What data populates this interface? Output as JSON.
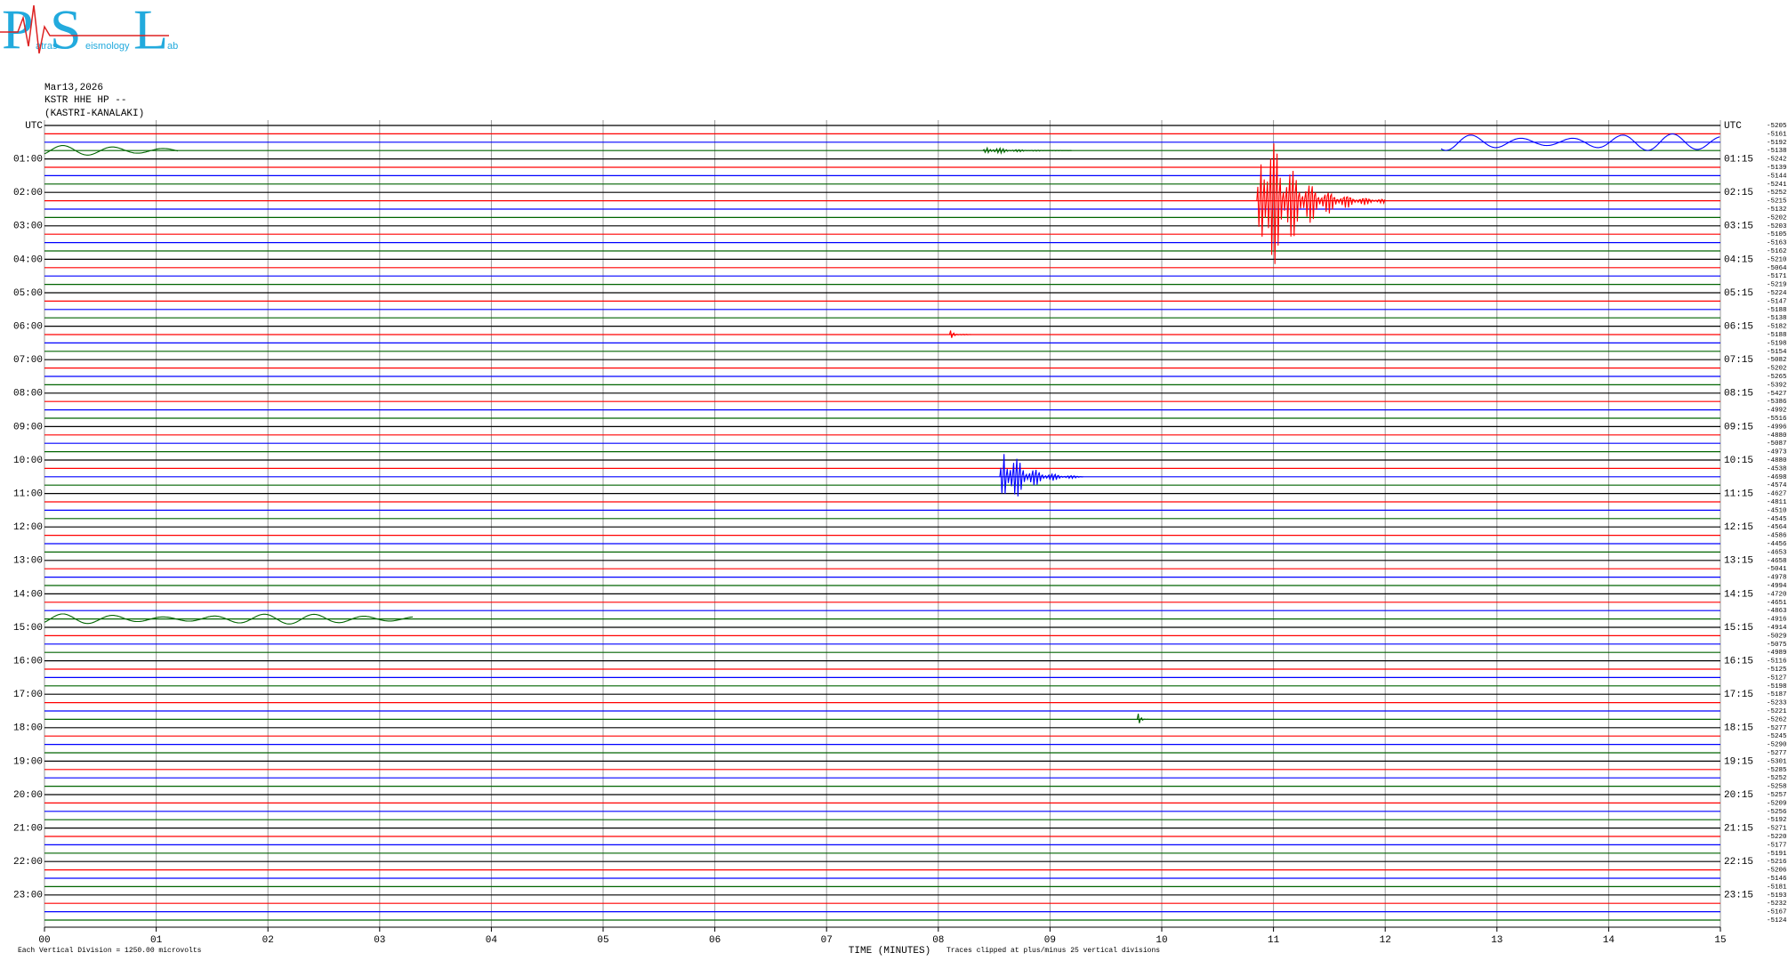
{
  "header": {
    "logo": {
      "letters": [
        "P",
        "S",
        "L"
      ],
      "words": [
        "atras",
        "eismology",
        "ab"
      ]
    },
    "date": "Mar13,2026",
    "station": "KSTR HHE HP --",
    "site": "(KASTRI-KANALAKI)"
  },
  "chart_data": {
    "type": "helicorder",
    "xlabel": "TIME (MINUTES)",
    "xlim": [
      0,
      15
    ],
    "xticks": [
      {
        "value": 0,
        "label": "00"
      },
      {
        "value": 1,
        "label": "01"
      },
      {
        "value": 2,
        "label": "02"
      },
      {
        "value": 3,
        "label": "03"
      },
      {
        "value": 4,
        "label": "04"
      },
      {
        "value": 5,
        "label": "05"
      },
      {
        "value": 6,
        "label": "06"
      },
      {
        "value": 7,
        "label": "07"
      },
      {
        "value": 8,
        "label": "08"
      },
      {
        "value": 9,
        "label": "09"
      },
      {
        "value": 10,
        "label": "10"
      },
      {
        "value": 11,
        "label": "11"
      },
      {
        "value": 12,
        "label": "12"
      },
      {
        "value": 13,
        "label": "13"
      },
      {
        "value": 14,
        "label": "14"
      },
      {
        "value": 15,
        "label": "15"
      }
    ],
    "grid": true,
    "left_labels": [
      "UTC",
      "01:00",
      "02:00",
      "03:00",
      "04:00",
      "05:00",
      "06:00",
      "07:00",
      "08:00",
      "09:00",
      "10:00",
      "11:00",
      "12:00",
      "13:00",
      "14:00",
      "15:00",
      "16:00",
      "17:00",
      "18:00",
      "19:00",
      "20:00",
      "21:00",
      "22:00",
      "23:00"
    ],
    "right_labels": [
      "UTC",
      "01:15",
      "02:15",
      "03:15",
      "04:15",
      "05:15",
      "06:15",
      "07:15",
      "08:15",
      "09:15",
      "10:15",
      "11:15",
      "12:15",
      "13:15",
      "14:15",
      "15:15",
      "16:15",
      "17:15",
      "18:15",
      "19:15",
      "20:15",
      "21:15",
      "22:15",
      "23:15"
    ],
    "offsets": [
      -5205,
      -5161,
      -5192,
      -5138,
      -5242,
      -5139,
      -5144,
      -5241,
      -5252,
      -5215,
      -5132,
      -5202,
      -5203,
      -5105,
      -5163,
      -5162,
      -5210,
      -5064,
      -5171,
      -5219,
      -5224,
      -5147,
      -5188,
      -5138,
      -5182,
      -5188,
      -5198,
      -5154,
      -5082,
      -5202,
      -5265,
      -5392,
      -5427,
      -5386,
      -4992,
      -5516,
      -4996,
      -4880,
      -5087,
      -4973,
      -4880,
      -4538,
      -4698,
      -4574,
      -4627,
      -4811,
      -4510,
      -4545,
      -4564,
      -4586,
      -4456,
      -4653,
      -4658,
      -5041,
      -4978,
      -4994,
      -4720,
      -4651,
      -4863,
      -4916,
      -4914,
      -5029,
      -5075,
      -4989,
      -5116,
      -5125,
      -5127,
      -5198,
      -5187,
      -5233,
      -5221,
      -5262,
      -5277,
      -5245,
      -5290,
      -5277,
      -5301,
      -5285,
      -5252,
      -5258,
      -5257,
      -5209,
      -5256,
      -5192,
      -5271,
      -5220,
      -5177,
      -5191,
      -5216,
      -5206,
      -5146,
      -5181,
      -5193,
      -5232,
      -5167,
      -5124
    ],
    "trace_colors": [
      "#000000",
      "#ff0000",
      "#0000ff",
      "#006400"
    ],
    "events": [
      {
        "trace": 9,
        "start": 10.85,
        "end": 12.0,
        "amplitude": 12,
        "shape": "burst"
      },
      {
        "trace": 42,
        "start": 8.55,
        "end": 9.3,
        "amplitude": 5,
        "shape": "burst"
      },
      {
        "trace": 2,
        "start": 12.5,
        "end": 15,
        "amplitude": 1,
        "shape": "wave"
      },
      {
        "trace": 3,
        "start": 0,
        "end": 1.2,
        "amplitude": 0.6,
        "shape": "wave"
      },
      {
        "trace": 3,
        "start": 8.4,
        "end": 9.2,
        "amplitude": 0.6,
        "shape": "burst"
      },
      {
        "trace": 25,
        "start": 8.1,
        "end": 8.3,
        "amplitude": 0.6,
        "shape": "burst"
      },
      {
        "trace": 71,
        "start": 9.78,
        "end": 9.9,
        "amplitude": 0.9,
        "shape": "burst"
      },
      {
        "trace": 59,
        "start": 0,
        "end": 3.3,
        "amplitude": 0.6,
        "shape": "wave"
      }
    ],
    "note_left": "Each Vertical Division = 1250.00 microvolts",
    "note_right": "Traces clipped at plus/minus 25 vertical divisions"
  }
}
